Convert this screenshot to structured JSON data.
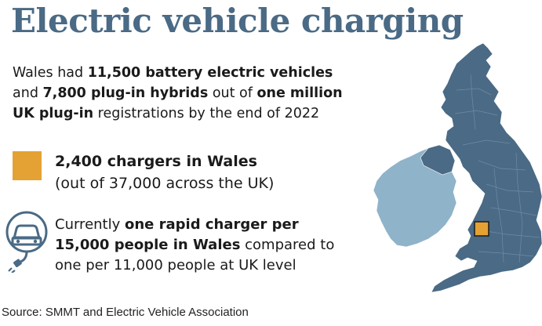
{
  "title": "Electric vehicle charging",
  "intro": {
    "t1": "Wales had ",
    "b1": "11,500 battery electric vehicles",
    "t2": " and ",
    "b2": "7,800 plug-in hybrids",
    "t3": " out of ",
    "b3": "one million UK plug-in",
    "t4": " registrations by the end of 2022"
  },
  "chargers": {
    "headline": "2,400 chargers in Wales",
    "subline": "(out of 37,000 across the UK)"
  },
  "rapid": {
    "t1": "Currently ",
    "b1": "one rapid charger per 15,000 people in Wales",
    "t2": " compared to one per 11,000 people at UK level"
  },
  "source": "Source: SMMT and Electric Vehicle Association",
  "colors": {
    "title": "#4a6a85",
    "wales_highlight": "#e4a234",
    "great_britain": "#4a6a85",
    "ireland": "#8fb3c9",
    "icon": "#4a6a85"
  },
  "icons": {
    "charger": "electric-car-plug-icon"
  }
}
